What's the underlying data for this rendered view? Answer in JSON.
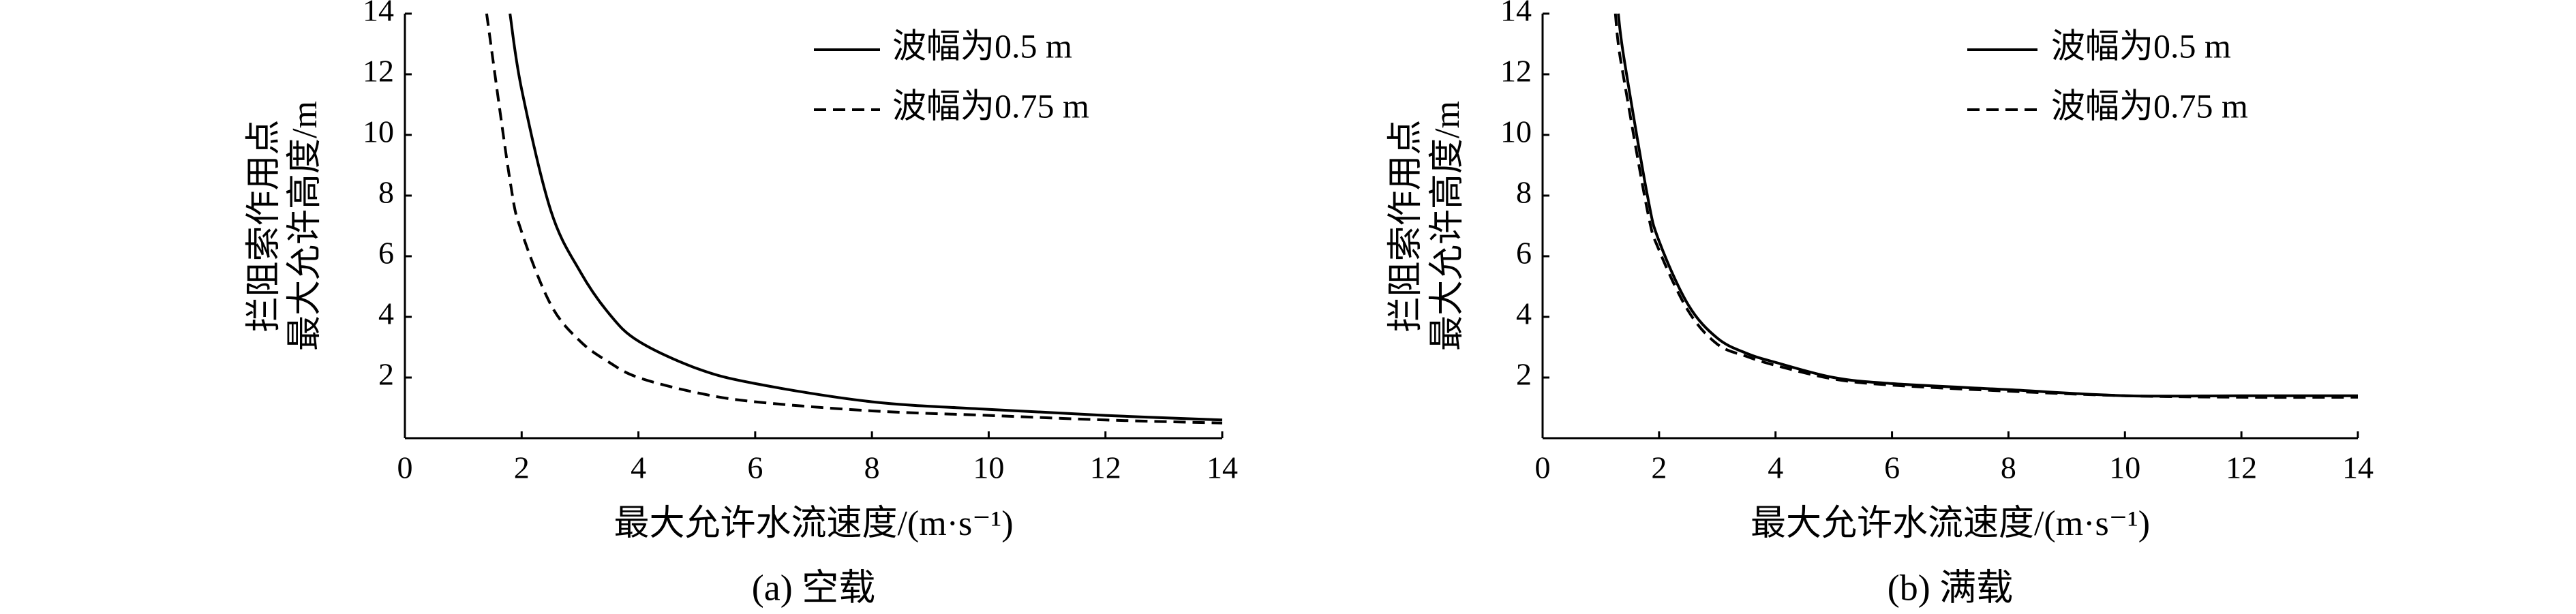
{
  "chart_data": [
    {
      "type": "line",
      "caption": "(a) 空载",
      "ylabel": [
        "拦阻索作用点",
        "最大允许高度/m"
      ],
      "xlabel": "最大允许水流速度/(m·s⁻¹)",
      "x": [
        1.25,
        1.3,
        1.4,
        1.8,
        2,
        2.5,
        3,
        3.5,
        4,
        5,
        6,
        8,
        10,
        12,
        14
      ],
      "xlim": [
        0,
        14
      ],
      "ylim": [
        0,
        14
      ],
      "xticks": [
        0,
        2,
        4,
        6,
        8,
        10,
        12,
        14
      ],
      "yticks": [
        2,
        4,
        6,
        8,
        10,
        12,
        14
      ],
      "series": [
        {
          "name": "波幅为0.5 m",
          "color": "#000000",
          "dashed": false,
          "values": [
            null,
            null,
            null,
            14,
            11.5,
            7.5,
            5.5,
            4.1,
            3.2,
            2.3,
            1.8,
            1.2,
            0.95,
            0.75,
            0.6
          ]
        },
        {
          "name": "波幅为0.75 m",
          "color": "#000000",
          "dashed": true,
          "values": [
            null,
            null,
            14,
            8.5,
            6.8,
            4.4,
            3.2,
            2.5,
            2.0,
            1.5,
            1.2,
            0.9,
            0.75,
            0.6,
            0.5
          ]
        }
      ]
    },
    {
      "type": "line",
      "caption": "(b) 满载",
      "ylabel": [
        "拦阻索作用点",
        "最大允许高度/m"
      ],
      "xlabel": "最大允许水流速度/(m·s⁻¹)",
      "x": [
        1.25,
        1.3,
        1.4,
        1.8,
        2,
        2.5,
        3,
        3.5,
        4,
        5,
        6,
        8,
        10,
        12,
        14
      ],
      "xlim": [
        0,
        14
      ],
      "ylim": [
        0,
        14
      ],
      "xticks": [
        0,
        2,
        4,
        6,
        8,
        10,
        12,
        14
      ],
      "yticks": [
        2,
        4,
        6,
        8,
        10,
        12,
        14
      ],
      "series": [
        {
          "name": "波幅为0.5 m",
          "color": "#000000",
          "dashed": false,
          "values": [
            null,
            14,
            12.5,
            8,
            6.5,
            4.4,
            3.3,
            2.8,
            2.5,
            2.0,
            1.8,
            1.6,
            1.4,
            1.4,
            1.4
          ]
        },
        {
          "name": "波幅为0.75 m",
          "color": "#000000",
          "dashed": true,
          "values": [
            14,
            13,
            11.8,
            7.5,
            6.2,
            4.2,
            3.1,
            2.7,
            2.4,
            1.95,
            1.75,
            1.55,
            1.4,
            1.35,
            1.35
          ]
        }
      ]
    }
  ]
}
